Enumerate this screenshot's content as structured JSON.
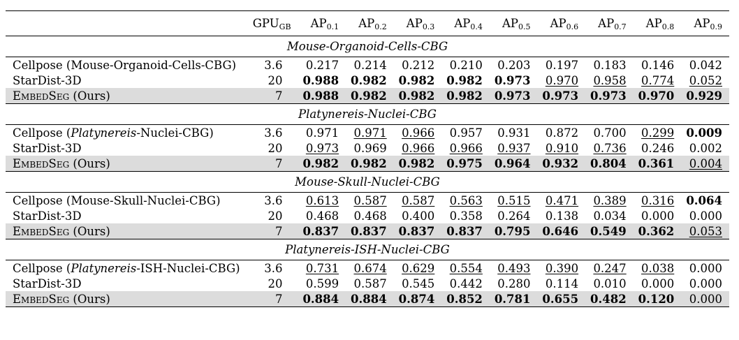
{
  "header": {
    "gpu": "GPU",
    "gpu_sub": "GB",
    "ap": [
      {
        "base": "AP",
        "sub": "0.1"
      },
      {
        "base": "AP",
        "sub": "0.2"
      },
      {
        "base": "AP",
        "sub": "0.3"
      },
      {
        "base": "AP",
        "sub": "0.4"
      },
      {
        "base": "AP",
        "sub": "0.5"
      },
      {
        "base": "AP",
        "sub": "0.6"
      },
      {
        "base": "AP",
        "sub": "0.7"
      },
      {
        "base": "AP",
        "sub": "0.8"
      },
      {
        "base": "AP",
        "sub": "0.9"
      }
    ]
  },
  "sections": [
    {
      "title": "Mouse-Organoid-Cells-CBG",
      "rows": [
        {
          "method": [
            {
              "t": "Cellpose (Mouse-Organoid-Cells-CBG)"
            }
          ],
          "gpu": "3.6",
          "values": [
            {
              "v": "0.217"
            },
            {
              "v": "0.214"
            },
            {
              "v": "0.212"
            },
            {
              "v": "0.210"
            },
            {
              "v": "0.203"
            },
            {
              "v": "0.197"
            },
            {
              "v": "0.183"
            },
            {
              "v": "0.146"
            },
            {
              "v": "0.042"
            }
          ]
        },
        {
          "method": [
            {
              "t": "StarDist-3D"
            }
          ],
          "gpu": "20",
          "values": [
            {
              "v": "0.988",
              "b": true
            },
            {
              "v": "0.982",
              "b": true
            },
            {
              "v": "0.982",
              "b": true
            },
            {
              "v": "0.982",
              "b": true
            },
            {
              "v": "0.973",
              "b": true
            },
            {
              "v": "0.970",
              "u": true
            },
            {
              "v": "0.958",
              "u": true
            },
            {
              "v": "0.774",
              "u": true
            },
            {
              "v": "0.052",
              "u": true
            }
          ]
        },
        {
          "method": [
            {
              "t": "EmbedSeg",
              "sc": true
            },
            {
              "t": " (Ours)"
            }
          ],
          "gpu": "7",
          "hl": true,
          "values": [
            {
              "v": "0.988",
              "b": true
            },
            {
              "v": "0.982",
              "b": true
            },
            {
              "v": "0.982",
              "b": true
            },
            {
              "v": "0.982",
              "b": true
            },
            {
              "v": "0.973",
              "b": true
            },
            {
              "v": "0.973",
              "b": true
            },
            {
              "v": "0.973",
              "b": true
            },
            {
              "v": "0.970",
              "b": true
            },
            {
              "v": "0.929",
              "b": true
            }
          ]
        }
      ]
    },
    {
      "title": "Platynereis-Nuclei-CBG",
      "rows": [
        {
          "method": [
            {
              "t": "Cellpose ("
            },
            {
              "t": "Platynereis",
              "i": true
            },
            {
              "t": "-Nuclei-CBG)"
            }
          ],
          "gpu": "3.6",
          "values": [
            {
              "v": "0.971"
            },
            {
              "v": "0.971",
              "u": true
            },
            {
              "v": "0.966",
              "u": true
            },
            {
              "v": "0.957"
            },
            {
              "v": "0.931"
            },
            {
              "v": "0.872"
            },
            {
              "v": "0.700"
            },
            {
              "v": "0.299",
              "u": true
            },
            {
              "v": "0.009",
              "b": true
            }
          ]
        },
        {
          "method": [
            {
              "t": "StarDist-3D"
            }
          ],
          "gpu": "20",
          "values": [
            {
              "v": "0.973",
              "u": true
            },
            {
              "v": "0.969"
            },
            {
              "v": "0.966",
              "u": true
            },
            {
              "v": "0.966",
              "u": true
            },
            {
              "v": "0.937",
              "u": true
            },
            {
              "v": "0.910",
              "u": true
            },
            {
              "v": "0.736",
              "u": true
            },
            {
              "v": "0.246"
            },
            {
              "v": "0.002"
            }
          ]
        },
        {
          "method": [
            {
              "t": "EmbedSeg",
              "sc": true
            },
            {
              "t": " (Ours)"
            }
          ],
          "gpu": "7",
          "hl": true,
          "values": [
            {
              "v": "0.982",
              "b": true
            },
            {
              "v": "0.982",
              "b": true
            },
            {
              "v": "0.982",
              "b": true
            },
            {
              "v": "0.975",
              "b": true
            },
            {
              "v": "0.964",
              "b": true
            },
            {
              "v": "0.932",
              "b": true
            },
            {
              "v": "0.804",
              "b": true
            },
            {
              "v": "0.361",
              "b": true
            },
            {
              "v": "0.004",
              "u": true
            }
          ]
        }
      ]
    },
    {
      "title": "Mouse-Skull-Nuclei-CBG",
      "rows": [
        {
          "method": [
            {
              "t": "Cellpose (Mouse-Skull-Nuclei-CBG)"
            }
          ],
          "gpu": "3.6",
          "values": [
            {
              "v": "0.613",
              "u": true
            },
            {
              "v": "0.587",
              "u": true
            },
            {
              "v": "0.587",
              "u": true
            },
            {
              "v": "0.563",
              "u": true
            },
            {
              "v": "0.515",
              "u": true
            },
            {
              "v": "0.471",
              "u": true
            },
            {
              "v": "0.389",
              "u": true
            },
            {
              "v": "0.316",
              "u": true
            },
            {
              "v": "0.064",
              "b": true
            }
          ]
        },
        {
          "method": [
            {
              "t": "StarDist-3D"
            }
          ],
          "gpu": "20",
          "values": [
            {
              "v": "0.468"
            },
            {
              "v": "0.468"
            },
            {
              "v": "0.400"
            },
            {
              "v": "0.358"
            },
            {
              "v": "0.264"
            },
            {
              "v": "0.138"
            },
            {
              "v": "0.034"
            },
            {
              "v": "0.000"
            },
            {
              "v": "0.000"
            }
          ]
        },
        {
          "method": [
            {
              "t": "EmbedSeg",
              "sc": true
            },
            {
              "t": " (Ours)"
            }
          ],
          "gpu": "7",
          "hl": true,
          "values": [
            {
              "v": "0.837",
              "b": true
            },
            {
              "v": "0.837",
              "b": true
            },
            {
              "v": "0.837",
              "b": true
            },
            {
              "v": "0.837",
              "b": true
            },
            {
              "v": "0.795",
              "b": true
            },
            {
              "v": "0.646",
              "b": true
            },
            {
              "v": "0.549",
              "b": true
            },
            {
              "v": "0.362",
              "b": true
            },
            {
              "v": "0.053",
              "u": true
            }
          ]
        }
      ]
    },
    {
      "title": "Platynereis-ISH-Nuclei-CBG",
      "rows": [
        {
          "method": [
            {
              "t": "Cellpose ("
            },
            {
              "t": "Platynereis",
              "i": true
            },
            {
              "t": "-ISH-Nuclei-CBG)"
            }
          ],
          "gpu": "3.6",
          "values": [
            {
              "v": "0.731",
              "u": true
            },
            {
              "v": "0.674",
              "u": true
            },
            {
              "v": "0.629",
              "u": true
            },
            {
              "v": "0.554",
              "u": true
            },
            {
              "v": "0.493",
              "u": true
            },
            {
              "v": "0.390",
              "u": true
            },
            {
              "v": "0.247",
              "u": true
            },
            {
              "v": "0.038",
              "u": true
            },
            {
              "v": "0.000"
            }
          ]
        },
        {
          "method": [
            {
              "t": "StarDist-3D"
            }
          ],
          "gpu": "20",
          "values": [
            {
              "v": "0.599"
            },
            {
              "v": "0.587"
            },
            {
              "v": "0.545"
            },
            {
              "v": "0.442"
            },
            {
              "v": "0.280"
            },
            {
              "v": "0.114"
            },
            {
              "v": "0.010"
            },
            {
              "v": "0.000"
            },
            {
              "v": "0.000"
            }
          ]
        },
        {
          "method": [
            {
              "t": "EmbedSeg",
              "sc": true
            },
            {
              "t": " (Ours)"
            }
          ],
          "gpu": "7",
          "hl": true,
          "values": [
            {
              "v": "0.884",
              "b": true
            },
            {
              "v": "0.884",
              "b": true
            },
            {
              "v": "0.874",
              "b": true
            },
            {
              "v": "0.852",
              "b": true
            },
            {
              "v": "0.781",
              "b": true
            },
            {
              "v": "0.655",
              "b": true
            },
            {
              "v": "0.482",
              "b": true
            },
            {
              "v": "0.120",
              "b": true
            },
            {
              "v": "0.000"
            }
          ]
        }
      ]
    }
  ]
}
